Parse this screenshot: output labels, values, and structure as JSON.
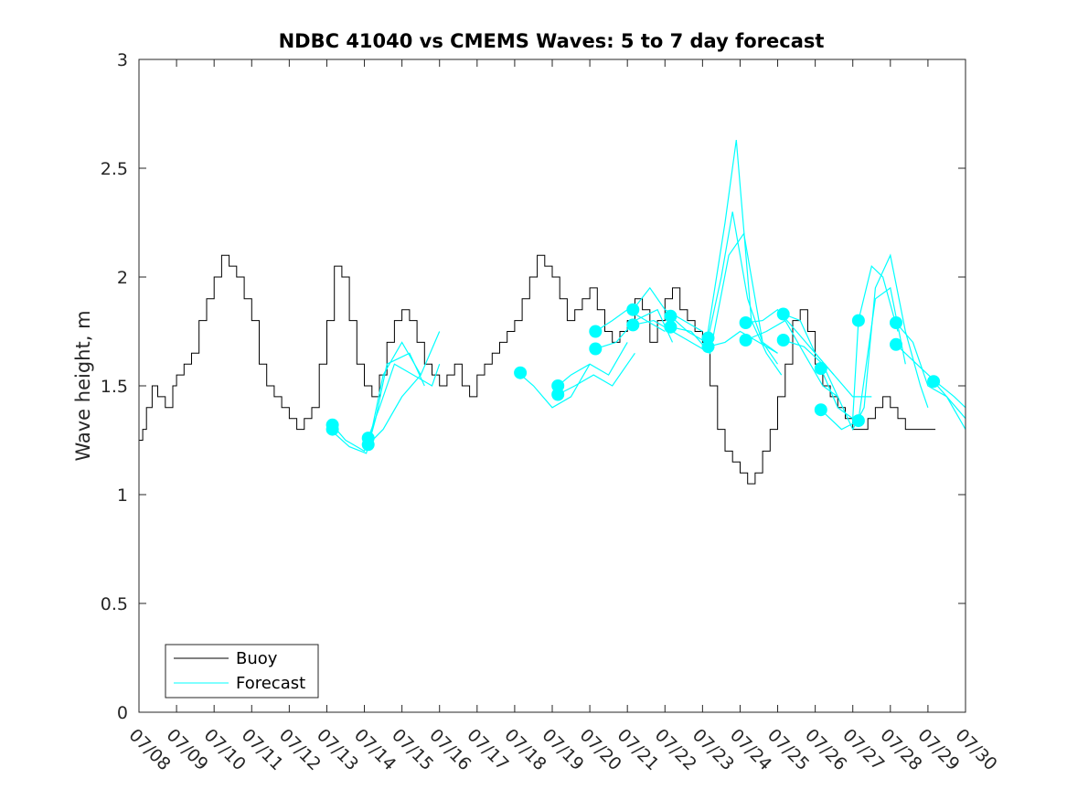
{
  "chart_data": {
    "type": "line",
    "title": "NDBC 41040 vs CMEMS Waves: 5 to 7 day forecast",
    "xlabel": "",
    "ylabel": "Wave height, m",
    "x_ticks": [
      "07/08",
      "07/09",
      "07/10",
      "07/11",
      "07/12",
      "07/13",
      "07/14",
      "07/15",
      "07/16",
      "07/17",
      "07/18",
      "07/19",
      "07/20",
      "07/21",
      "07/22",
      "07/23",
      "07/24",
      "07/25",
      "07/26",
      "07/27",
      "07/28",
      "07/29",
      "07/30"
    ],
    "xlim": [
      "07/08",
      "07/30"
    ],
    "ylim": [
      0,
      3
    ],
    "y_ticks": [
      "0",
      "0.5",
      "1",
      "1.5",
      "2",
      "2.5",
      "3"
    ],
    "grid": false,
    "legend_position": "bottom-left",
    "legend": [
      "Buoy",
      "Forecast"
    ],
    "colors": {
      "buoy": "#000000",
      "forecast": "#00ffff"
    },
    "series": [
      {
        "name": "Buoy",
        "x_days_since_07_08": [
          0.0,
          0.1,
          0.2,
          0.35,
          0.5,
          0.7,
          0.9,
          1.0,
          1.2,
          1.4,
          1.6,
          1.8,
          2.0,
          2.2,
          2.4,
          2.6,
          2.8,
          3.0,
          3.2,
          3.4,
          3.6,
          3.8,
          4.0,
          4.2,
          4.4,
          4.6,
          4.8,
          5.0,
          5.2,
          5.4,
          5.6,
          5.8,
          6.0,
          6.2,
          6.4,
          6.6,
          6.8,
          7.0,
          7.2,
          7.4,
          7.6,
          7.8,
          8.0,
          8.2,
          8.4,
          8.6,
          8.8,
          9.0,
          9.2,
          9.4,
          9.6,
          9.8,
          10.0,
          10.2,
          10.4,
          10.6,
          10.8,
          11.0,
          11.2,
          11.4,
          11.6,
          11.8,
          12.0,
          12.2,
          12.4,
          12.6,
          12.8,
          13.0,
          13.2,
          13.4,
          13.6,
          13.8,
          14.0,
          14.2,
          14.4,
          14.6,
          14.8,
          15.0,
          15.2,
          15.4,
          15.6,
          15.8,
          16.0,
          16.2,
          16.4,
          16.6,
          16.8,
          17.0,
          17.2,
          17.4,
          17.6,
          17.8,
          18.0,
          18.2,
          18.4,
          18.6,
          18.8,
          19.0,
          19.2,
          19.4,
          19.6,
          19.8,
          20.0,
          20.2,
          20.4,
          20.6,
          20.8,
          21.0,
          21.2
        ],
        "values": [
          1.25,
          1.3,
          1.4,
          1.5,
          1.45,
          1.4,
          1.5,
          1.55,
          1.6,
          1.65,
          1.8,
          1.9,
          2.0,
          2.1,
          2.05,
          2.0,
          1.9,
          1.8,
          1.6,
          1.5,
          1.45,
          1.4,
          1.35,
          1.3,
          1.35,
          1.4,
          1.6,
          1.8,
          2.05,
          2.0,
          1.8,
          1.6,
          1.5,
          1.45,
          1.55,
          1.7,
          1.8,
          1.85,
          1.8,
          1.7,
          1.6,
          1.55,
          1.5,
          1.55,
          1.6,
          1.5,
          1.45,
          1.55,
          1.6,
          1.65,
          1.7,
          1.75,
          1.8,
          1.9,
          2.0,
          2.1,
          2.05,
          2.0,
          1.9,
          1.8,
          1.85,
          1.9,
          1.95,
          1.85,
          1.75,
          1.7,
          1.75,
          1.8,
          1.9,
          1.85,
          1.7,
          1.8,
          1.9,
          1.95,
          1.85,
          1.8,
          1.75,
          1.7,
          1.5,
          1.3,
          1.2,
          1.15,
          1.1,
          1.05,
          1.1,
          1.2,
          1.3,
          1.45,
          1.6,
          1.8,
          1.85,
          1.75,
          1.6,
          1.5,
          1.45,
          1.4,
          1.35,
          1.3,
          1.3,
          1.35,
          1.4,
          1.45,
          1.4,
          1.35,
          1.3,
          1.3,
          1.3,
          1.3,
          1.3
        ]
      },
      {
        "name": "Forecast",
        "runs": [
          {
            "x": [
              5.15,
              5.5,
              6.0,
              6.2,
              6.5,
              7.0,
              7.5,
              8.0
            ],
            "values": [
              1.32,
              1.25,
              1.2,
              1.3,
              1.55,
              1.7,
              1.55,
              1.75
            ]
          },
          {
            "x": [
              5.15,
              5.6,
              6.05,
              6.3,
              6.6,
              7.2,
              7.6
            ],
            "values": [
              1.29,
              1.22,
              1.19,
              1.35,
              1.6,
              1.65,
              1.5
            ]
          },
          {
            "x": [
              6.1,
              6.4,
              6.8,
              7.3,
              7.8,
              8.0
            ],
            "values": [
              1.26,
              1.4,
              1.6,
              1.55,
              1.5,
              1.6
            ]
          },
          {
            "x": [
              6.1,
              6.5,
              7.0,
              7.5
            ],
            "values": [
              1.23,
              1.3,
              1.45,
              1.55
            ]
          },
          {
            "x": [
              10.1,
              10.5,
              11.0,
              11.5,
              12.0
            ],
            "values": [
              1.56,
              1.5,
              1.4,
              1.45,
              1.6
            ]
          },
          {
            "x": [
              11.15,
              11.5,
              12.0,
              12.5,
              13.0
            ],
            "values": [
              1.5,
              1.55,
              1.6,
              1.55,
              1.7
            ]
          },
          {
            "x": [
              11.15,
              11.6,
              12.1,
              12.6,
              13.2
            ],
            "values": [
              1.46,
              1.5,
              1.55,
              1.5,
              1.65
            ]
          },
          {
            "x": [
              12.15,
              12.6,
              13.0,
              13.5,
              14.0
            ],
            "values": [
              1.75,
              1.8,
              1.85,
              1.8,
              1.75
            ]
          },
          {
            "x": [
              12.15,
              12.7,
              13.2,
              13.8,
              14.2
            ],
            "values": [
              1.67,
              1.7,
              1.8,
              1.85,
              1.7
            ]
          },
          {
            "x": [
              13.15,
              13.6,
              14.0,
              14.5,
              15.0
            ],
            "values": [
              1.85,
              1.95,
              1.85,
              1.8,
              1.75
            ]
          },
          {
            "x": [
              13.15,
              13.7,
              14.2,
              14.7,
              15.2
            ],
            "values": [
              1.78,
              1.8,
              1.75,
              1.7,
              1.65
            ]
          },
          {
            "x": [
              14.15,
              14.6,
              15.1,
              15.6,
              15.9,
              16.3,
              16.7,
              17.1
            ],
            "values": [
              1.82,
              1.75,
              1.7,
              2.25,
              2.63,
              1.8,
              1.65,
              1.55
            ]
          },
          {
            "x": [
              14.15,
              14.7,
              15.2,
              15.7,
              16.1,
              16.6,
              17.0
            ],
            "values": [
              1.77,
              1.75,
              1.65,
              2.1,
              2.2,
              1.7,
              1.6
            ]
          },
          {
            "x": [
              15.15,
              15.5,
              15.8,
              16.2,
              16.6,
              17.0
            ],
            "values": [
              1.72,
              2.0,
              2.3,
              1.9,
              1.7,
              1.65
            ]
          },
          {
            "x": [
              15.15,
              15.6,
              16.0,
              16.5,
              17.0
            ],
            "values": [
              1.68,
              1.7,
              1.75,
              1.7,
              1.65
            ]
          },
          {
            "x": [
              16.15,
              16.6,
              17.0,
              17.5,
              18.0,
              18.5
            ],
            "values": [
              1.79,
              1.8,
              1.85,
              1.75,
              1.65,
              1.55
            ]
          },
          {
            "x": [
              16.15,
              16.7,
              17.2,
              17.7,
              18.2,
              18.6
            ],
            "values": [
              1.71,
              1.75,
              1.8,
              1.65,
              1.5,
              1.45
            ]
          },
          {
            "x": [
              17.15,
              17.6,
              18.0,
              18.5,
              19.0,
              19.5
            ],
            "values": [
              1.83,
              1.8,
              1.65,
              1.55,
              1.45,
              1.45
            ]
          },
          {
            "x": [
              17.15,
              17.7,
              18.2,
              18.6,
              19.0,
              19.3,
              19.6,
              20.0,
              20.4,
              20.8,
              21.0
            ],
            "values": [
              1.71,
              1.68,
              1.6,
              1.45,
              1.3,
              1.4,
              1.95,
              2.1,
              1.75,
              1.5,
              1.4
            ]
          },
          {
            "x": [
              18.15,
              18.6,
              19.0,
              19.15,
              19.5,
              19.8,
              20.2
            ],
            "values": [
              1.58,
              1.4,
              1.35,
              1.8,
              2.05,
              2.0,
              1.75
            ]
          },
          {
            "x": [
              18.15,
              18.7,
              19.15,
              19.6,
              20.0,
              20.4
            ],
            "values": [
              1.39,
              1.3,
              1.34,
              1.9,
              1.95,
              1.6
            ]
          },
          {
            "x": [
              20.15,
              20.6,
              21.0,
              21.5,
              22.0
            ],
            "values": [
              1.79,
              1.7,
              1.5,
              1.45,
              1.35
            ]
          },
          {
            "x": [
              20.15,
              20.7,
              21.2,
              21.7,
              22.0
            ],
            "values": [
              1.69,
              1.6,
              1.52,
              1.45,
              1.4
            ]
          },
          {
            "x": [
              21.15,
              21.5,
              22.0
            ],
            "values": [
              1.52,
              1.45,
              1.3
            ]
          }
        ],
        "markers": {
          "x": [
            5.15,
            5.15,
            6.1,
            6.1,
            10.15,
            11.15,
            11.15,
            12.15,
            12.15,
            13.15,
            13.15,
            14.15,
            14.15,
            15.15,
            15.15,
            16.15,
            16.15,
            17.15,
            17.15,
            18.15,
            18.15,
            19.15,
            19.15,
            20.15,
            20.15,
            21.15
          ],
          "values": [
            1.32,
            1.3,
            1.26,
            1.23,
            1.56,
            1.5,
            1.46,
            1.75,
            1.67,
            1.85,
            1.78,
            1.82,
            1.77,
            1.72,
            1.68,
            1.79,
            1.71,
            1.83,
            1.71,
            1.58,
            1.39,
            1.8,
            1.34,
            1.79,
            1.69,
            1.52
          ]
        }
      }
    ]
  }
}
